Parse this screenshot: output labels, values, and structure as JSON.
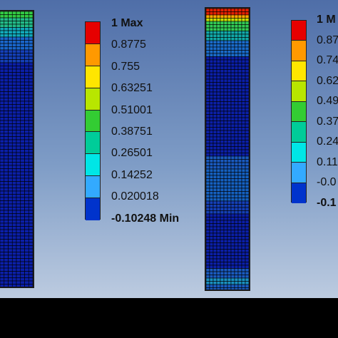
{
  "legend_left": {
    "max_label": "1 Max",
    "min_label": "-0.10248 Min",
    "labels": [
      "1 Max",
      "0.8775",
      "0.755",
      "0.63251",
      "0.51001",
      "0.38751",
      "0.26501",
      "0.14252",
      "0.020018",
      "-0.10248 Min"
    ],
    "colors": [
      "#e60000",
      "#ff9900",
      "#ffe600",
      "#b8e600",
      "#33cc33",
      "#00cc99",
      "#00e6e6",
      "#33aaff",
      "#0033cc"
    ]
  },
  "legend_right": {
    "labels": [
      "1 M",
      "0.87",
      "0.74",
      "0.62",
      "0.49",
      "0.37",
      "0.24",
      "0.11",
      "-0.0",
      "-0.1"
    ],
    "colors": [
      "#e60000",
      "#ff9900",
      "#ffe600",
      "#b8e600",
      "#33cc33",
      "#00cc99",
      "#00e6e6",
      "#33aaff",
      "#0033cc"
    ]
  },
  "colors": {
    "mesh_base": "#0b1fa8",
    "mesh_line": "#000000",
    "bottom_bar": "#000000"
  }
}
